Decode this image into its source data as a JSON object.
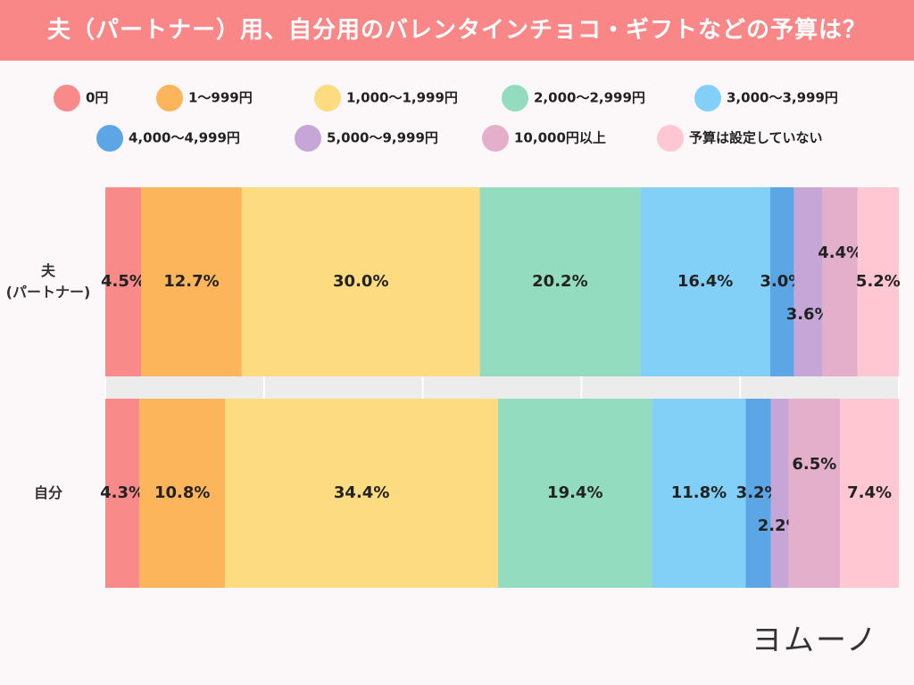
{
  "chart_data": {
    "type": "stacked-bar-horizontal",
    "title": "夫（パートナー）用、自分用のバレンタインチョコ・ギフトなどの予算は？",
    "categories": [
      "夫\n(パートナー)",
      "自分"
    ],
    "xlim": [
      0,
      100
    ],
    "xticks": [
      0,
      20,
      40,
      60,
      80,
      100
    ],
    "series": [
      {
        "name": "0円",
        "color": "#f98a8a",
        "values": [
          4.5,
          4.3
        ],
        "value_labels": [
          "4.5%",
          "4.3%"
        ]
      },
      {
        "name": "1～999円",
        "color": "#fdb55b",
        "values": [
          12.7,
          10.8
        ],
        "value_labels": [
          "12.7%",
          "10.8%"
        ]
      },
      {
        "name": "1,000～1,999円",
        "color": "#fddb80",
        "values": [
          30.0,
          34.4
        ],
        "value_labels": [
          "30.0%",
          "34.4%"
        ]
      },
      {
        "name": "2,000～2,999円",
        "color": "#93dcbf",
        "values": [
          20.2,
          19.4
        ],
        "value_labels": [
          "20.2%",
          "19.4%"
        ]
      },
      {
        "name": "3,000～3,999円",
        "color": "#82d0f8",
        "values": [
          16.4,
          11.8
        ],
        "value_labels": [
          "16.4%",
          "11.8%"
        ]
      },
      {
        "name": "4,000～4,999円",
        "color": "#5da6e6",
        "values": [
          3.0,
          3.2
        ],
        "value_labels": [
          "3.0%",
          "3.2%"
        ]
      },
      {
        "name": "5,000～9,999円",
        "color": "#c6a6d6",
        "values": [
          3.6,
          2.2
        ],
        "value_labels": [
          "3.6%",
          "2.2%"
        ]
      },
      {
        "name": "10,000円以上",
        "color": "#e3afcb",
        "values": [
          4.4,
          6.5
        ],
        "value_labels": [
          "4.4%",
          "6.5%"
        ]
      },
      {
        "name": "予算は設定していない",
        "color": "#fec7d2",
        "values": [
          5.2,
          7.4
        ],
        "value_labels": [
          "5.2%",
          "7.4%"
        ]
      }
    ]
  },
  "logo": "ヨムーノ"
}
